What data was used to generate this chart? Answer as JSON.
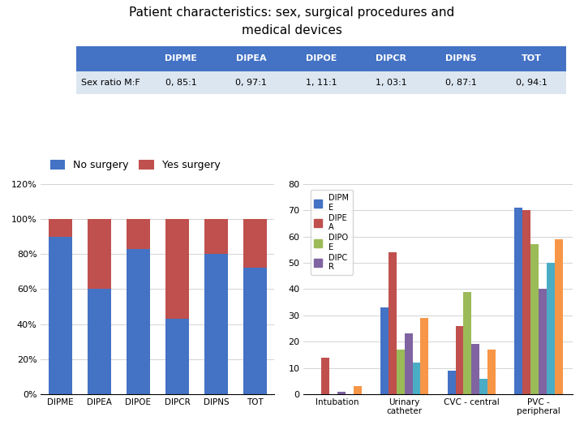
{
  "title_line1": "Patient characteristics: sex, surgical procedures and",
  "title_line2": "medical devices",
  "table_header": [
    "",
    "DIPME",
    "DIPEA",
    "DIPOE",
    "DIPCR",
    "DIPNS",
    "TOT"
  ],
  "table_row_label": "Sex ratio M:F",
  "table_values": [
    "0, 85:1",
    "0, 97:1",
    "1, 11:1",
    "1, 03:1",
    "0, 87:1",
    "0, 94:1"
  ],
  "header_bg": "#4472C4",
  "row_bg": "#DCE6F1",
  "bar1_categories": [
    "DIPME",
    "DIPEA",
    "DIPOE",
    "DIPCR",
    "DIPNS",
    "TOT"
  ],
  "no_surgery": [
    90,
    60,
    83,
    43,
    80,
    72
  ],
  "yes_surgery": [
    10,
    40,
    17,
    57,
    20,
    28
  ],
  "bar1_no_color": "#4472C4",
  "bar1_yes_color": "#C0504D",
  "bar2_categories": [
    "Intubation",
    "Urinary\ncatheter",
    "CVC - central",
    "PVC -\nperipheral"
  ],
  "bar2_series": {
    "DIPME": [
      0,
      33,
      9,
      71
    ],
    "DIPEA": [
      14,
      54,
      26,
      70
    ],
    "DIPOE": [
      0,
      17,
      39,
      57
    ],
    "DIPCR": [
      1,
      23,
      19,
      40
    ],
    "DIPNS_teal": [
      0,
      12,
      6,
      50
    ],
    "TOT": [
      3,
      29,
      17,
      59
    ]
  },
  "bar2_colors": [
    "#4472C4",
    "#C0504D",
    "#9BBB59",
    "#8064A2",
    "#4BACC6",
    "#F79646"
  ],
  "bar2_ylim": [
    0,
    80
  ],
  "title_fontsize": 11,
  "table_fontsize": 8
}
